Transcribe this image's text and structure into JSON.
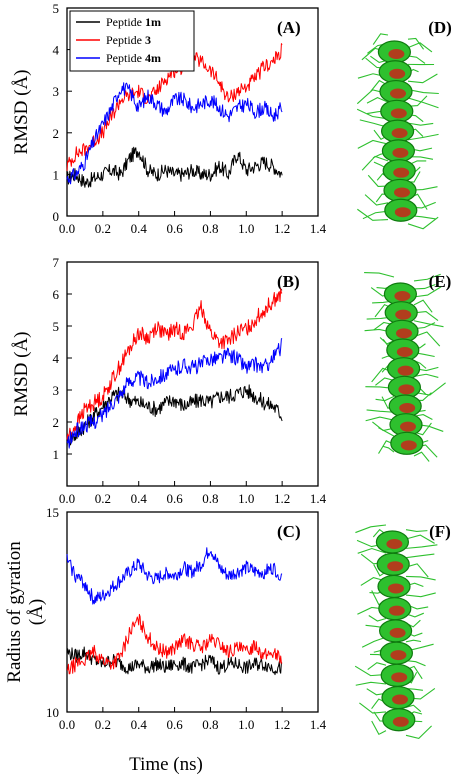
{
  "figure": {
    "panel_letters": [
      "(A)",
      "(B)",
      "(C)",
      "(D)",
      "(E)",
      "(F)"
    ],
    "x_axis_title": "Time (ns)",
    "x_tick_labels": [
      "0.0",
      "0.2",
      "0.4",
      "0.6",
      "0.8",
      "1.0",
      "1.2",
      "1.4"
    ],
    "legend": [
      {
        "prefix": "Peptide ",
        "suffix": "1m",
        "color": "#000000"
      },
      {
        "prefix": "Peptide ",
        "suffix": "3",
        "color": "#ff0000"
      },
      {
        "prefix": "Peptide ",
        "suffix": "4m",
        "color": "#0000ff"
      }
    ],
    "structure_icons": [
      "helix-structure-icon",
      "helix-structure-icon",
      "helix-structure-icon"
    ],
    "colors": {
      "helix": "#2ec02e",
      "helix_dark": "#0f7a0f",
      "core": "#c8261a"
    }
  },
  "chart_data": [
    {
      "type": "line",
      "panel": "(A)",
      "xlabel": "Time (ns)",
      "ylabel": "RMSD (Å)",
      "xlim": [
        0.0,
        1.4
      ],
      "ylim": [
        0,
        5
      ],
      "xticks": [
        0.0,
        0.2,
        0.4,
        0.6,
        0.8,
        1.0,
        1.2,
        1.4
      ],
      "yticks": [
        0,
        1,
        2,
        3,
        4,
        5
      ],
      "ytick_labels": [
        "0",
        "1",
        "2",
        "3",
        "4",
        "5"
      ],
      "x": [
        0.0,
        0.05,
        0.1,
        0.15,
        0.2,
        0.25,
        0.3,
        0.35,
        0.4,
        0.45,
        0.5,
        0.55,
        0.6,
        0.65,
        0.7,
        0.75,
        0.8,
        0.85,
        0.9,
        0.95,
        1.0,
        1.05,
        1.1,
        1.15,
        1.2
      ],
      "series": [
        {
          "name": "Peptide 1m",
          "color": "#000000",
          "values": [
            0.9,
            1.0,
            0.8,
            0.9,
            1.0,
            1.1,
            1.0,
            1.4,
            1.6,
            1.1,
            1.0,
            1.1,
            1.0,
            1.0,
            1.1,
            1.0,
            1.0,
            1.2,
            1.0,
            1.5,
            1.1,
            1.2,
            1.3,
            1.2,
            1.0
          ]
        },
        {
          "name": "Peptide 3",
          "color": "#ff0000",
          "values": [
            1.2,
            1.5,
            1.6,
            1.8,
            2.0,
            2.4,
            2.8,
            2.9,
            3.0,
            2.8,
            3.0,
            3.3,
            3.5,
            3.6,
            3.8,
            3.7,
            3.5,
            3.2,
            2.8,
            3.0,
            3.1,
            3.3,
            3.6,
            3.7,
            4.0
          ]
        },
        {
          "name": "Peptide 4m",
          "color": "#0000ff",
          "values": [
            0.9,
            1.0,
            1.3,
            1.8,
            2.2,
            2.6,
            3.1,
            3.0,
            2.6,
            2.9,
            2.7,
            2.5,
            2.8,
            2.8,
            2.6,
            2.7,
            2.8,
            2.6,
            2.4,
            2.6,
            2.7,
            2.5,
            2.6,
            2.4,
            2.6
          ]
        }
      ]
    },
    {
      "type": "line",
      "panel": "(B)",
      "xlabel": "Time (ns)",
      "ylabel": "RMSD (Å)",
      "xlim": [
        0.0,
        1.4
      ],
      "ylim": [
        0,
        7
      ],
      "xticks": [
        0.0,
        0.2,
        0.4,
        0.6,
        0.8,
        1.0,
        1.2,
        1.4
      ],
      "yticks": [
        1,
        2,
        3,
        4,
        5,
        6,
        7
      ],
      "ytick_labels": [
        "1",
        "2",
        "3",
        "4",
        "5",
        "6",
        "7"
      ],
      "x": [
        0.0,
        0.05,
        0.1,
        0.15,
        0.2,
        0.25,
        0.3,
        0.35,
        0.4,
        0.45,
        0.5,
        0.55,
        0.6,
        0.65,
        0.7,
        0.75,
        0.8,
        0.85,
        0.9,
        0.95,
        1.0,
        1.05,
        1.1,
        1.15,
        1.2
      ],
      "series": [
        {
          "name": "Peptide 1m",
          "color": "#000000",
          "values": [
            1.4,
            1.6,
            1.9,
            2.2,
            2.5,
            2.8,
            2.9,
            2.7,
            2.6,
            2.5,
            2.4,
            2.6,
            2.7,
            2.5,
            2.6,
            2.7,
            2.6,
            2.8,
            2.8,
            2.9,
            3.0,
            2.8,
            2.6,
            2.5,
            2.2
          ]
        },
        {
          "name": "Peptide 3",
          "color": "#ff0000",
          "values": [
            1.5,
            1.9,
            2.4,
            2.6,
            2.8,
            3.3,
            3.8,
            4.3,
            4.8,
            4.6,
            5.0,
            4.7,
            4.9,
            4.8,
            5.0,
            5.6,
            4.8,
            4.5,
            4.5,
            4.8,
            4.9,
            5.2,
            5.5,
            5.8,
            6.0
          ]
        },
        {
          "name": "Peptide 4m",
          "color": "#0000ff",
          "values": [
            1.3,
            1.7,
            1.9,
            2.0,
            2.2,
            2.6,
            2.9,
            3.3,
            3.4,
            3.2,
            3.4,
            3.5,
            3.6,
            3.8,
            3.7,
            3.8,
            4.0,
            4.0,
            4.1,
            4.0,
            3.7,
            3.8,
            3.7,
            4.0,
            4.4
          ]
        }
      ]
    },
    {
      "type": "line",
      "panel": "(C)",
      "xlabel": "Time (ns)",
      "ylabel": "Radius of gyration (Å)",
      "xlim": [
        0.0,
        1.4
      ],
      "ylim": [
        10,
        15
      ],
      "xticks": [
        0.0,
        0.2,
        0.4,
        0.6,
        0.8,
        1.0,
        1.2,
        1.4
      ],
      "yticks": [
        10,
        15
      ],
      "ytick_labels": [
        "10",
        "15"
      ],
      "x": [
        0.0,
        0.05,
        0.1,
        0.15,
        0.2,
        0.25,
        0.3,
        0.35,
        0.4,
        0.45,
        0.5,
        0.55,
        0.6,
        0.65,
        0.7,
        0.75,
        0.8,
        0.85,
        0.9,
        0.95,
        1.0,
        1.05,
        1.1,
        1.15,
        1.2
      ],
      "series": [
        {
          "name": "Peptide 1m",
          "color": "#000000",
          "values": [
            11.5,
            11.4,
            11.5,
            11.3,
            11.2,
            11.3,
            11.2,
            11.1,
            11.2,
            11.1,
            11.2,
            11.1,
            11.2,
            11.2,
            11.1,
            11.2,
            11.3,
            11.1,
            11.2,
            11.2,
            11.1,
            11.2,
            11.2,
            11.1,
            11.1
          ]
        },
        {
          "name": "Peptide 3",
          "color": "#ff0000",
          "values": [
            11.0,
            11.2,
            11.3,
            11.5,
            11.3,
            11.2,
            11.4,
            12.0,
            12.3,
            11.9,
            11.6,
            11.5,
            11.6,
            11.8,
            11.7,
            11.6,
            11.8,
            11.7,
            11.5,
            11.6,
            11.5,
            11.7,
            11.4,
            11.5,
            11.3
          ]
        },
        {
          "name": "Peptide 4m",
          "color": "#0000ff",
          "values": [
            13.8,
            13.4,
            13.2,
            12.8,
            12.9,
            13.1,
            13.3,
            13.5,
            13.7,
            13.4,
            13.3,
            13.5,
            13.4,
            13.6,
            13.5,
            13.7,
            14.1,
            13.6,
            13.4,
            13.5,
            13.6,
            13.5,
            13.5,
            13.6,
            13.4
          ]
        }
      ]
    }
  ]
}
